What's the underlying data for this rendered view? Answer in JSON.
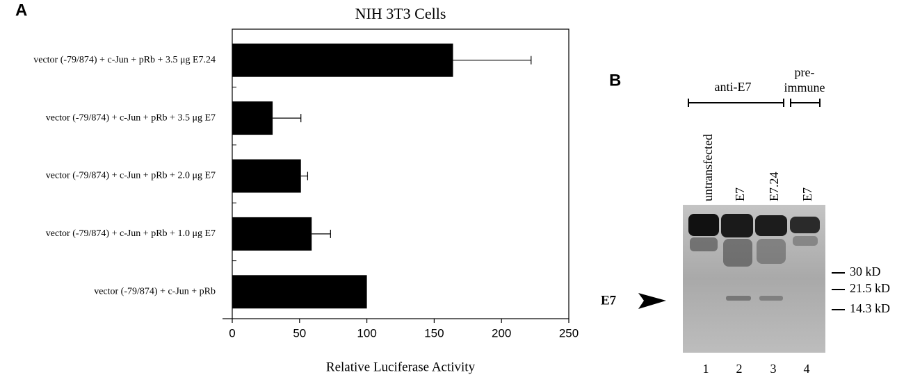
{
  "chart_data": {
    "type": "bar",
    "orientation": "horizontal",
    "title": "NIH 3T3 Cells",
    "x_label": "Relative Luciferase Activity",
    "categories": [
      "vector (-79/874) + c-Jun + pRb + 3.5 μg E7.24",
      "vector (-79/874) + c-Jun + pRb + 3.5 μg E7",
      "vector (-79/874) + c-Jun + pRb + 2.0 μg E7",
      "vector (-79/874) + c-Jun + pRb + 1.0 μg E7",
      "vector (-79/874) + c-Jun + pRb"
    ],
    "values": [
      164,
      30,
      51,
      59,
      100
    ],
    "errors": [
      58,
      21,
      5,
      14,
      null
    ],
    "color": "#000000",
    "xlim": [
      0,
      250
    ],
    "xticks": [
      0,
      50,
      100,
      150,
      200,
      250
    ],
    "grid": false
  },
  "panel_labels": [
    "A",
    "B"
  ],
  "gel": {
    "group_labels": [
      "anti-E7",
      "pre-",
      "immune"
    ],
    "lane_labels": [
      "untransfected",
      "E7",
      "E7.24",
      "E7"
    ],
    "lane_numbers": [
      "1",
      "2",
      "3",
      "4"
    ],
    "markers": [
      "30 kD",
      "21.5 kD",
      "14.3 kD"
    ],
    "arrow_label": "E7"
  }
}
